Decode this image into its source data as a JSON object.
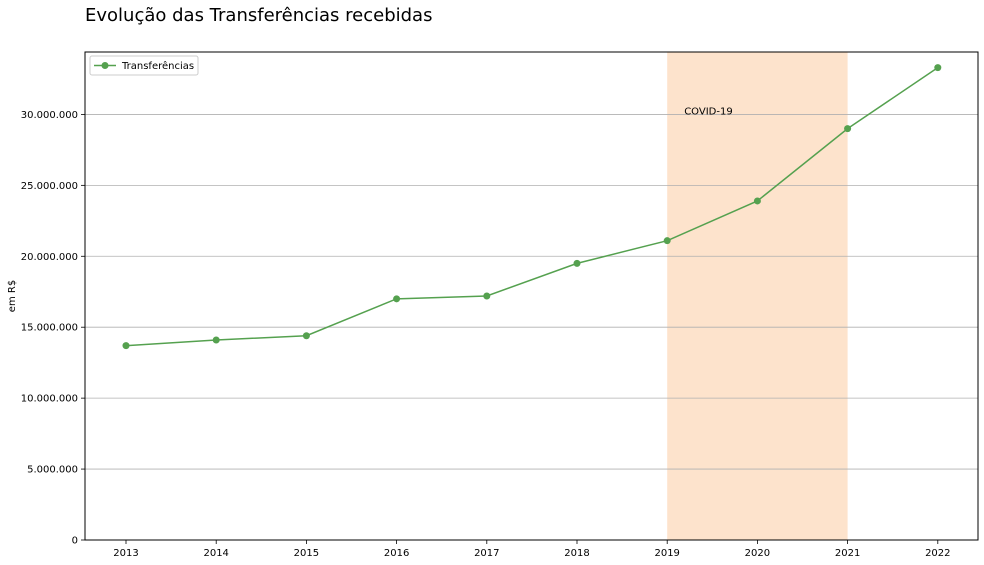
{
  "chart_data": {
    "type": "line",
    "title": "Evolução das Transferências recebidas",
    "xlabel": "",
    "ylabel": "em R$",
    "x": [
      "2013",
      "2014",
      "2015",
      "2016",
      "2017",
      "2018",
      "2019",
      "2020",
      "2021",
      "2022"
    ],
    "series": [
      {
        "name": "Transferências",
        "color": "#55a14f",
        "marker": "circle",
        "values": [
          13700000,
          14100000,
          14400000,
          17000000,
          17200000,
          19500000,
          21100000,
          23900000,
          29000000,
          33300000
        ]
      }
    ],
    "ylim": [
      0,
      34400000
    ],
    "yticks": [
      0,
      5000000,
      10000000,
      15000000,
      20000000,
      25000000,
      30000000
    ],
    "ytick_labels": [
      "0",
      "5.000.000",
      "10.000.000",
      "15.000.000",
      "20.000.000",
      "25.000.000",
      "30.000.000"
    ],
    "grid": "horizontal",
    "legend": {
      "position": "top-left"
    },
    "highlight_span": {
      "from": "2019",
      "to": "2021",
      "color": "#fde3cc"
    },
    "annotation": {
      "text": "COVID-19",
      "x": "2019",
      "y": 30200000
    }
  }
}
